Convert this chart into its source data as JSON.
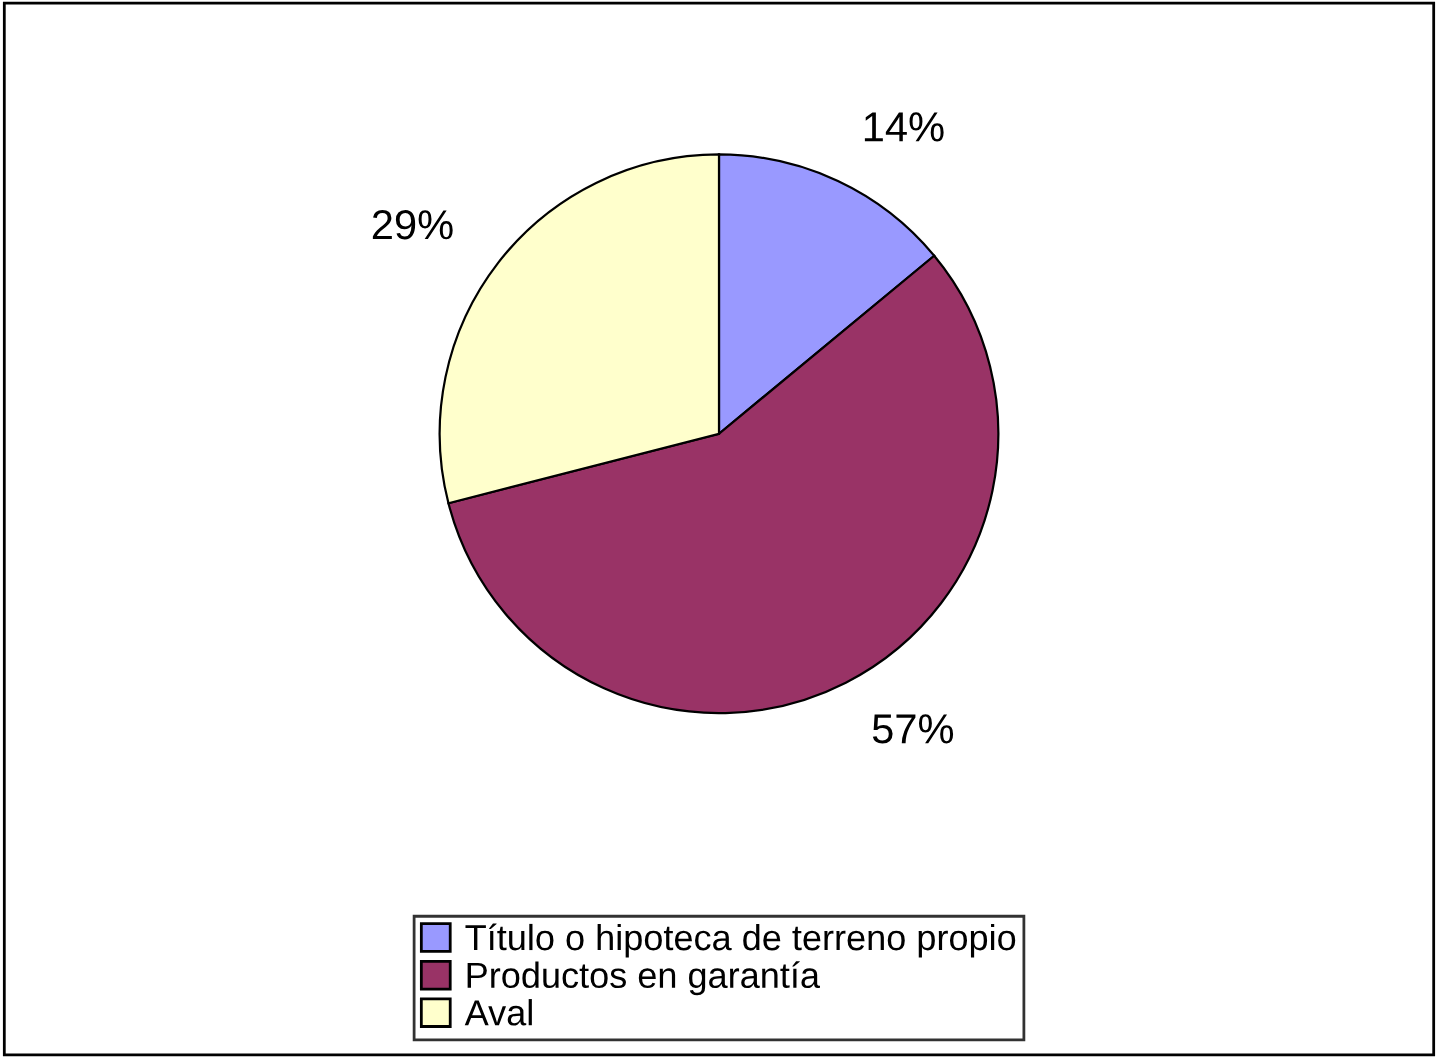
{
  "chart_data": {
    "type": "pie",
    "categories": [
      "Título o hipoteca de terreno propio",
      "Productos en garantía",
      "Aval"
    ],
    "values": [
      14,
      57,
      29
    ],
    "value_labels": [
      "14%",
      "57%",
      "29%"
    ],
    "colors": [
      "#9999ff",
      "#993366",
      "#ffffcc"
    ],
    "legend": "bottom"
  }
}
